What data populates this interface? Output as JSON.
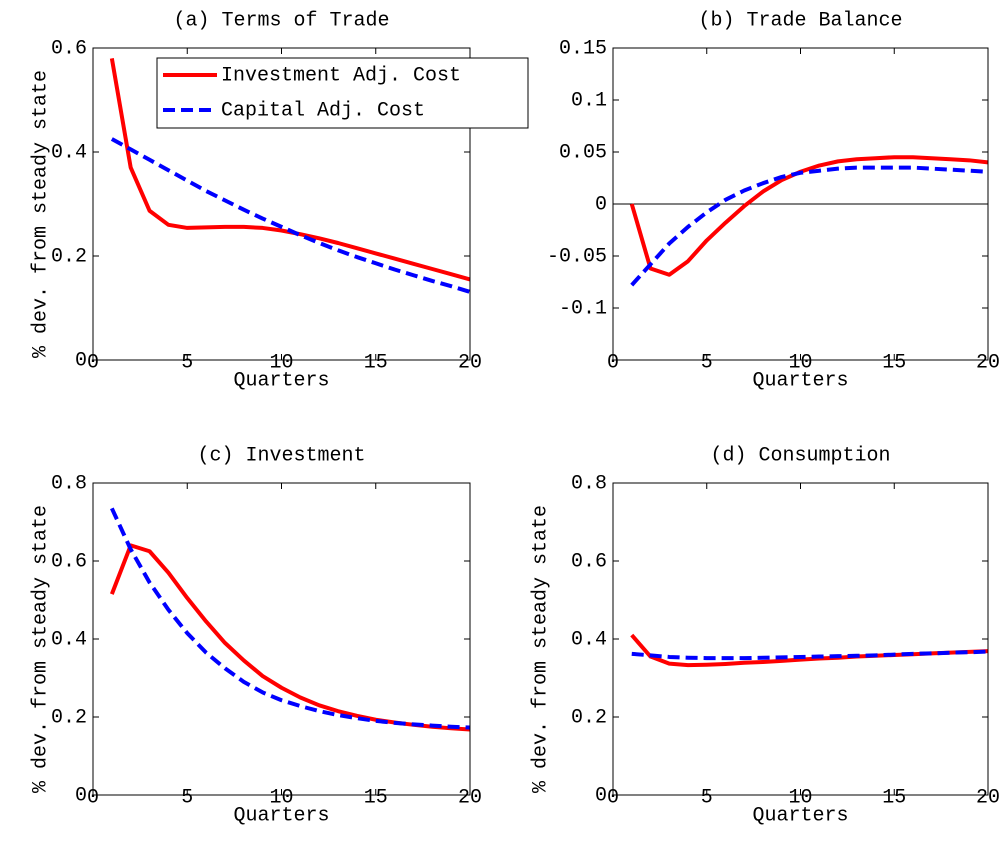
{
  "chart_data": [
    {
      "type": "line",
      "title": "(a) Terms of Trade",
      "x_label": "Quarters",
      "y_label": "% dev. from steady state",
      "x": [
        1,
        2,
        3,
        4,
        5,
        6,
        7,
        8,
        9,
        10,
        11,
        12,
        13,
        14,
        15,
        16,
        17,
        18,
        19,
        20
      ],
      "xlim": [
        0,
        20
      ],
      "xticks": [
        0,
        5,
        10,
        15,
        20
      ],
      "ylim": [
        0,
        0.6
      ],
      "yticks": [
        0,
        0.2,
        0.4,
        0.6
      ],
      "legend": "upper right",
      "series": [
        {
          "name": "Investment Adj. Cost",
          "color": "#ff0000",
          "linestyle": "solid",
          "values": [
            0.58,
            0.37,
            0.287,
            0.26,
            0.254,
            0.255,
            0.256,
            0.256,
            0.254,
            0.249,
            0.242,
            0.234,
            0.225,
            0.215,
            0.205,
            0.195,
            0.185,
            0.175,
            0.165,
            0.155
          ]
        },
        {
          "name": "Capital Adj. Cost",
          "color": "#0000ff",
          "linestyle": "dashed",
          "values": [
            0.425,
            0.405,
            0.385,
            0.365,
            0.345,
            0.325,
            0.307,
            0.289,
            0.272,
            0.256,
            0.24,
            0.225,
            0.211,
            0.198,
            0.186,
            0.174,
            0.163,
            0.152,
            0.142,
            0.131
          ]
        }
      ]
    },
    {
      "type": "line",
      "title": "(b) Trade Balance",
      "x_label": "Quarters",
      "x": [
        1,
        2,
        3,
        4,
        5,
        6,
        7,
        8,
        9,
        10,
        11,
        12,
        13,
        14,
        15,
        16,
        17,
        18,
        19,
        20
      ],
      "xlim": [
        0,
        20
      ],
      "xticks": [
        0,
        5,
        10,
        15,
        20
      ],
      "ylim": [
        -0.15,
        0.15
      ],
      "yticks": [
        -0.1,
        -0.05,
        0,
        0.05,
        0.1,
        0.15
      ],
      "zero_line": true,
      "series": [
        {
          "color": "#ff0000",
          "linestyle": "solid",
          "values": [
            0,
            -0.062,
            -0.068,
            -0.055,
            -0.035,
            -0.018,
            -0.002,
            0.012,
            0.023,
            0.031,
            0.037,
            0.041,
            0.043,
            0.044,
            0.045,
            0.045,
            0.044,
            0.043,
            0.042,
            0.04
          ]
        },
        {
          "color": "#0000ff",
          "linestyle": "dashed",
          "values": [
            -0.078,
            -0.058,
            -0.038,
            -0.022,
            -0.008,
            0.004,
            0.013,
            0.02,
            0.026,
            0.03,
            0.032,
            0.034,
            0.035,
            0.035,
            0.035,
            0.035,
            0.034,
            0.033,
            0.032,
            0.031
          ]
        }
      ]
    },
    {
      "type": "line",
      "title": "(c) Investment",
      "x_label": "Quarters",
      "y_label": "% dev. from steady state",
      "x": [
        1,
        2,
        3,
        4,
        5,
        6,
        7,
        8,
        9,
        10,
        11,
        12,
        13,
        14,
        15,
        16,
        17,
        18,
        19,
        20
      ],
      "xlim": [
        0,
        20
      ],
      "xticks": [
        0,
        5,
        10,
        15,
        20
      ],
      "ylim": [
        0,
        0.8
      ],
      "yticks": [
        0,
        0.2,
        0.4,
        0.6,
        0.8
      ],
      "series": [
        {
          "color": "#ff0000",
          "linestyle": "solid",
          "values": [
            0.515,
            0.64,
            0.625,
            0.57,
            0.505,
            0.445,
            0.39,
            0.345,
            0.305,
            0.275,
            0.25,
            0.23,
            0.215,
            0.203,
            0.193,
            0.186,
            0.18,
            0.175,
            0.171,
            0.168
          ]
        },
        {
          "color": "#0000ff",
          "linestyle": "dashed",
          "values": [
            0.735,
            0.63,
            0.545,
            0.475,
            0.415,
            0.365,
            0.325,
            0.29,
            0.263,
            0.243,
            0.228,
            0.215,
            0.205,
            0.197,
            0.19,
            0.185,
            0.181,
            0.178,
            0.175,
            0.173
          ]
        }
      ]
    },
    {
      "type": "line",
      "title": "(d) Consumption",
      "x_label": "Quarters",
      "y_label": "% dev. from steady state",
      "x": [
        1,
        2,
        3,
        4,
        5,
        6,
        7,
        8,
        9,
        10,
        11,
        12,
        13,
        14,
        15,
        16,
        17,
        18,
        19,
        20
      ],
      "xlim": [
        0,
        20
      ],
      "xticks": [
        0,
        5,
        10,
        15,
        20
      ],
      "ylim": [
        0,
        0.8
      ],
      "yticks": [
        0,
        0.2,
        0.4,
        0.6,
        0.8
      ],
      "series": [
        {
          "color": "#ff0000",
          "linestyle": "solid",
          "values": [
            0.41,
            0.355,
            0.337,
            0.333,
            0.334,
            0.336,
            0.339,
            0.341,
            0.344,
            0.347,
            0.35,
            0.352,
            0.355,
            0.357,
            0.359,
            0.361,
            0.363,
            0.365,
            0.367,
            0.369
          ]
        },
        {
          "color": "#0000ff",
          "linestyle": "dashed",
          "values": [
            0.362,
            0.358,
            0.354,
            0.352,
            0.351,
            0.351,
            0.351,
            0.352,
            0.353,
            0.354,
            0.355,
            0.356,
            0.357,
            0.358,
            0.36,
            0.362,
            0.363,
            0.365,
            0.366,
            0.368
          ]
        }
      ]
    }
  ]
}
